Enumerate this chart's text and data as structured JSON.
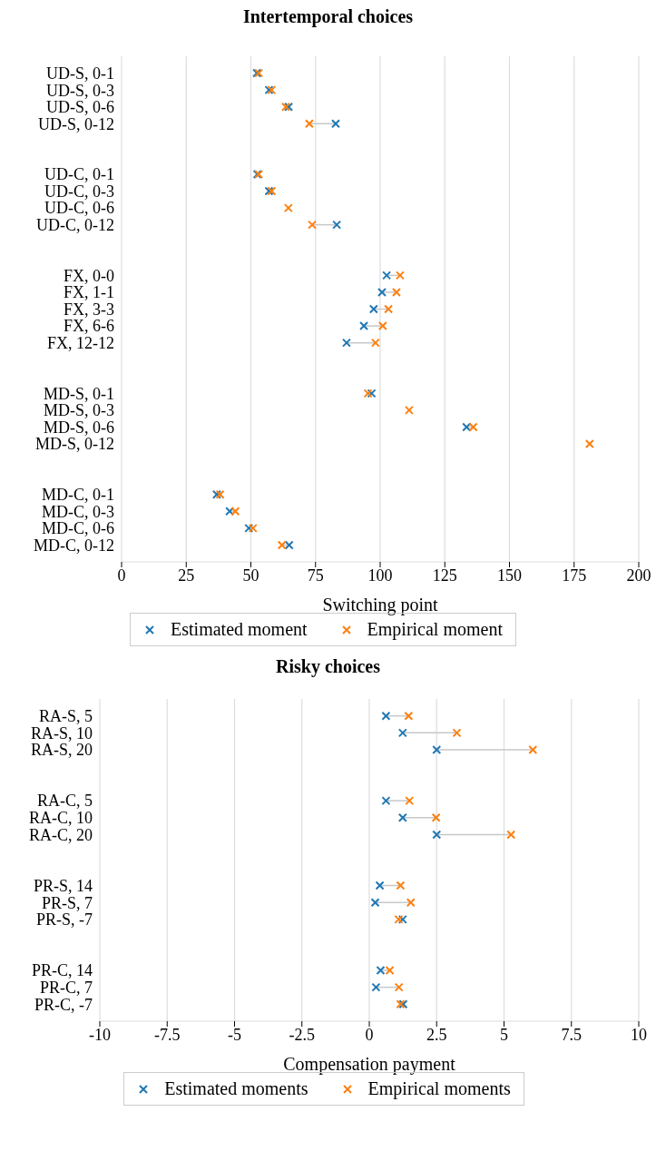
{
  "chart_data": [
    {
      "type": "scatter",
      "orientation": "horizontal",
      "title": "Intertemporal choices",
      "xlabel": "Switching point",
      "categories": [
        "UD-S, 0-1",
        "UD-S, 0-3",
        "UD-S, 0-6",
        "UD-S, 0-12",
        null,
        null,
        "UD-C, 0-1",
        "UD-C, 0-3",
        "UD-C, 0-6",
        "UD-C, 0-12",
        null,
        null,
        "FX, 0-0",
        "FX, 1-1",
        "FX, 3-3",
        "FX, 6-6",
        "FX, 12-12",
        null,
        null,
        "MD-S, 0-1",
        "MD-S, 0-3",
        "MD-S, 0-6",
        "MD-S, 0-12",
        null,
        null,
        "MD-C, 0-1",
        "MD-C, 0-3",
        "MD-C, 0-6",
        "MD-C, 0-12"
      ],
      "series": [
        {
          "name": "Estimated moment",
          "color": "#1f77b4",
          "values": [
            52.3,
            57,
            64.6,
            82.8,
            null,
            null,
            52.5,
            57,
            null,
            83.2,
            null,
            null,
            102.5,
            100.7,
            97.5,
            93.7,
            87,
            null,
            null,
            96.7,
            null,
            133.4,
            null,
            null,
            null,
            36.8,
            41.8,
            49.2,
            64.8
          ]
        },
        {
          "name": "Empirical moment",
          "color": "#ff7f0e",
          "values": [
            53,
            58,
            63.5,
            72.6,
            null,
            null,
            53,
            58,
            64.5,
            73.7,
            null,
            null,
            107.7,
            106.3,
            103.2,
            101,
            98.2,
            null,
            null,
            95.3,
            111.2,
            136,
            181,
            null,
            null,
            38.1,
            44,
            50.8,
            62
          ]
        }
      ],
      "xlim": [
        0,
        200
      ],
      "xticks": [
        0,
        25,
        50,
        75,
        100,
        125,
        150,
        175,
        200
      ],
      "grid": "x",
      "legend": "bottom",
      "marker": "cross"
    },
    {
      "type": "scatter",
      "orientation": "horizontal",
      "title": "Risky choices",
      "xlabel": "Compensation payment",
      "categories": [
        "RA-S, 5",
        "RA-S, 10",
        "RA-S, 20",
        null,
        null,
        "RA-C, 5",
        "RA-C, 10",
        "RA-C, 20",
        null,
        null,
        "PR-S, 14",
        "PR-S, 7",
        "PR-S, -7",
        null,
        null,
        "PR-C, 14",
        "PR-C, 7",
        "PR-C, -7"
      ],
      "series": [
        {
          "name": "Estimated moments",
          "color": "#1f77b4",
          "values": [
            0.62,
            1.24,
            2.5,
            null,
            null,
            0.62,
            1.24,
            2.5,
            null,
            null,
            0.39,
            0.22,
            1.24,
            null,
            null,
            0.42,
            0.25,
            1.26
          ]
        },
        {
          "name": "Empirical moments",
          "color": "#ff7f0e",
          "values": [
            1.46,
            3.25,
            6.07,
            null,
            null,
            1.49,
            2.48,
            5.26,
            null,
            null,
            1.16,
            1.54,
            1.09,
            null,
            null,
            0.76,
            1.1,
            1.16
          ]
        }
      ],
      "xlim": [
        -10,
        10
      ],
      "xticks": [
        -10,
        -7.5,
        -5,
        -2.5,
        0,
        2.5,
        5,
        7.5,
        10
      ],
      "grid": "x",
      "legend": "bottom",
      "marker": "cross"
    }
  ]
}
